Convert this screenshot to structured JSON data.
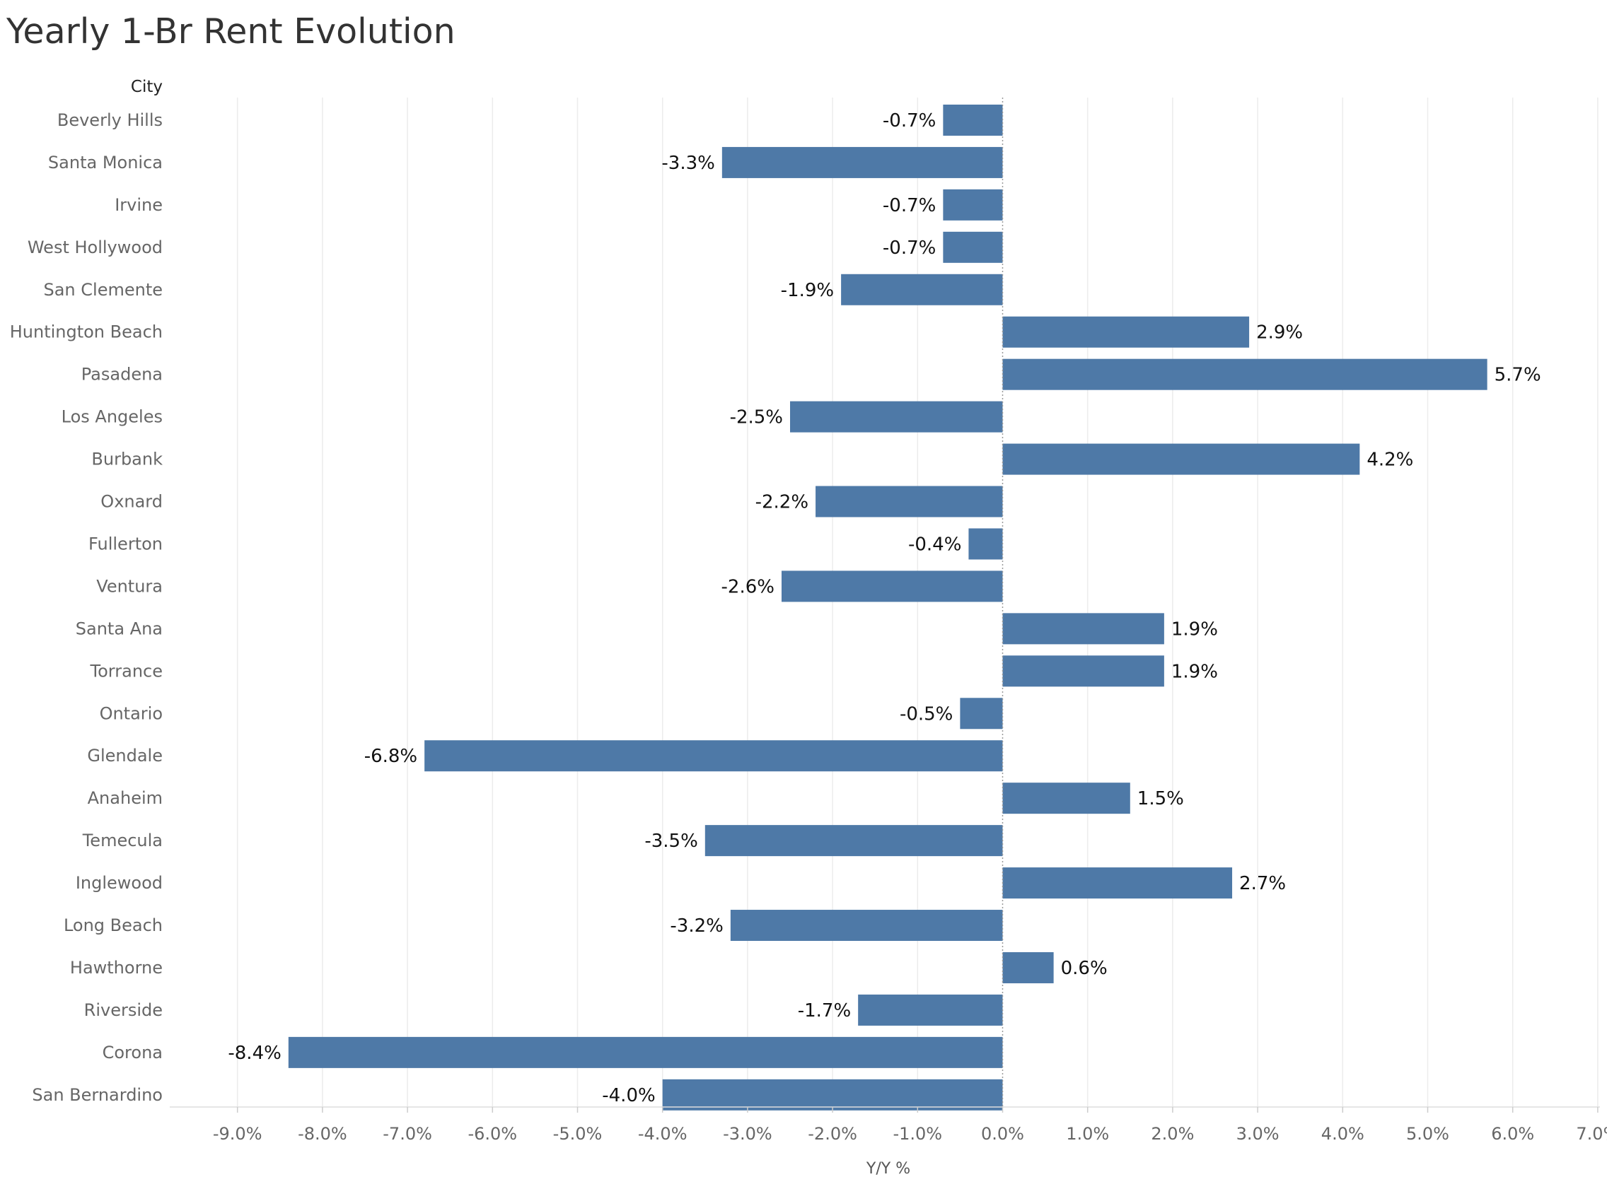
{
  "chart_data": {
    "type": "bar",
    "orientation": "horizontal",
    "title": "Yearly 1-Br Rent Evolution",
    "row_header": "City",
    "xlabel": "Y/Y %",
    "xlim": [
      -9.8,
      7.0
    ],
    "xticks": [
      -9,
      -8,
      -7,
      -6,
      -5,
      -4,
      -3,
      -2,
      -1,
      0,
      1,
      2,
      3,
      4,
      5,
      6,
      7
    ],
    "xtick_labels": [
      "-9.0%",
      "-8.0%",
      "-7.0%",
      "-6.0%",
      "-5.0%",
      "-4.0%",
      "-3.0%",
      "-2.0%",
      "-1.0%",
      "0.0%",
      "1.0%",
      "2.0%",
      "3.0%",
      "4.0%",
      "5.0%",
      "6.0%",
      "7.0%"
    ],
    "grid": "vertical",
    "bar_color": "#4e79a7",
    "categories": [
      "Beverly Hills",
      "Santa Monica",
      "Irvine",
      "West Hollywood",
      "San Clemente",
      "Huntington Beach",
      "Pasadena",
      "Los Angeles",
      "Burbank",
      "Oxnard",
      "Fullerton",
      "Ventura",
      "Santa Ana",
      "Torrance",
      "Ontario",
      "Glendale",
      "Anaheim",
      "Temecula",
      "Inglewood",
      "Long Beach",
      "Hawthorne",
      "Riverside",
      "Corona",
      "San Bernardino"
    ],
    "values": [
      -0.7,
      -3.3,
      -0.7,
      -0.7,
      -1.9,
      2.9,
      5.7,
      -2.5,
      4.2,
      -2.2,
      -0.4,
      -2.6,
      1.9,
      1.9,
      -0.5,
      -6.8,
      1.5,
      -3.5,
      2.7,
      -3.2,
      0.6,
      -1.7,
      -8.4,
      -4.0
    ],
    "data_labels": [
      "-0.7%",
      "-3.3%",
      "-0.7%",
      "-0.7%",
      "-1.9%",
      "2.9%",
      "5.7%",
      "-2.5%",
      "4.2%",
      "-2.2%",
      "-0.4%",
      "-2.6%",
      "1.9%",
      "1.9%",
      "-0.5%",
      "-6.8%",
      "1.5%",
      "-3.5%",
      "2.7%",
      "-3.2%",
      "0.6%",
      "-1.7%",
      "-8.4%",
      "-4.0%"
    ]
  }
}
